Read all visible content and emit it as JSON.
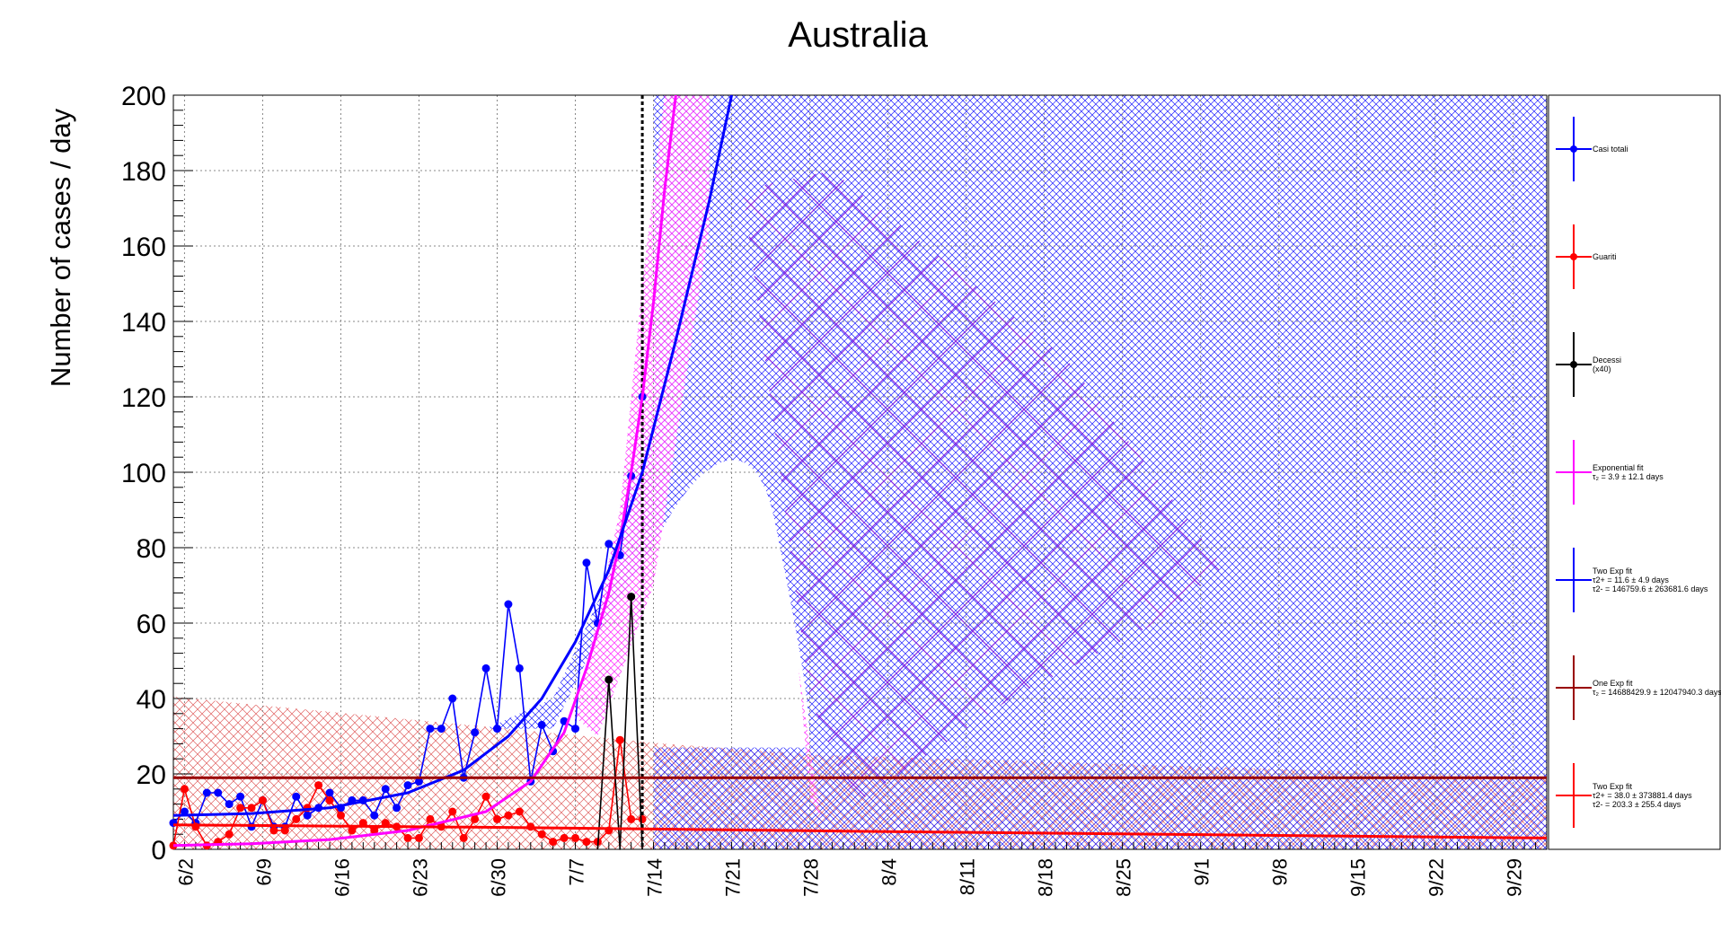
{
  "chart_data": {
    "type": "line",
    "title": "Australia",
    "xlabel": "",
    "ylabel": "Number of cases / day",
    "ylim": [
      0,
      200
    ],
    "yticks": [
      0,
      20,
      40,
      60,
      80,
      100,
      120,
      140,
      160,
      180,
      200
    ],
    "xlim": [
      "2020-06-01",
      "2020-10-02"
    ],
    "grid": true,
    "legend_position": "right",
    "x_tick_labels": [
      {
        "date": "2020-06-02",
        "label": "6/2"
      },
      {
        "date": "2020-06-09",
        "label": "6/9"
      },
      {
        "date": "2020-06-16",
        "label": "6/16"
      },
      {
        "date": "2020-06-23",
        "label": "6/23"
      },
      {
        "date": "2020-06-30",
        "label": "6/30"
      },
      {
        "date": "2020-07-07",
        "label": "7/7"
      },
      {
        "date": "2020-07-14",
        "label": "7/14"
      },
      {
        "date": "2020-07-21",
        "label": "7/21"
      },
      {
        "date": "2020-07-28",
        "label": "7/28"
      },
      {
        "date": "2020-08-04",
        "label": "8/4"
      },
      {
        "date": "2020-08-11",
        "label": "8/11"
      },
      {
        "date": "2020-08-18",
        "label": "8/18"
      },
      {
        "date": "2020-08-25",
        "label": "8/25"
      },
      {
        "date": "2020-09-01",
        "label": "9/1"
      },
      {
        "date": "2020-09-08",
        "label": "9/8"
      },
      {
        "date": "2020-09-15",
        "label": "9/15"
      },
      {
        "date": "2020-09-22",
        "label": "9/22"
      },
      {
        "date": "2020-09-29",
        "label": "9/29"
      }
    ],
    "vertical_line_date": "2020-07-13",
    "series": [
      {
        "name": "Casi totali",
        "color": "#0000ff",
        "points": [
          [
            "2020-06-01",
            7
          ],
          [
            "2020-06-02",
            10
          ],
          [
            "2020-06-03",
            7
          ],
          [
            "2020-06-04",
            15
          ],
          [
            "2020-06-05",
            15
          ],
          [
            "2020-06-06",
            12
          ],
          [
            "2020-06-07",
            14
          ],
          [
            "2020-06-08",
            6
          ],
          [
            "2020-06-09",
            13
          ],
          [
            "2020-06-10",
            6
          ],
          [
            "2020-06-11",
            6
          ],
          [
            "2020-06-12",
            14
          ],
          [
            "2020-06-13",
            9
          ],
          [
            "2020-06-14",
            11
          ],
          [
            "2020-06-15",
            15
          ],
          [
            "2020-06-16",
            11
          ],
          [
            "2020-06-17",
            13
          ],
          [
            "2020-06-18",
            13
          ],
          [
            "2020-06-19",
            9
          ],
          [
            "2020-06-20",
            16
          ],
          [
            "2020-06-21",
            11
          ],
          [
            "2020-06-22",
            17
          ],
          [
            "2020-06-23",
            18
          ],
          [
            "2020-06-24",
            32
          ],
          [
            "2020-06-25",
            32
          ],
          [
            "2020-06-26",
            40
          ],
          [
            "2020-06-27",
            19
          ],
          [
            "2020-06-28",
            31
          ],
          [
            "2020-06-29",
            48
          ],
          [
            "2020-06-30",
            32
          ],
          [
            "2020-07-01",
            65
          ],
          [
            "2020-07-02",
            48
          ],
          [
            "2020-07-03",
            18
          ],
          [
            "2020-07-04",
            33
          ],
          [
            "2020-07-05",
            26
          ],
          [
            "2020-07-06",
            34
          ],
          [
            "2020-07-07",
            32
          ],
          [
            "2020-07-08",
            76
          ],
          [
            "2020-07-09",
            60
          ],
          [
            "2020-07-10",
            81
          ],
          [
            "2020-07-11",
            78
          ],
          [
            "2020-07-12",
            99
          ],
          [
            "2020-07-13",
            120
          ]
        ]
      },
      {
        "name": "Guariti",
        "color": "#ff0000",
        "points": [
          [
            "2020-06-01",
            1
          ],
          [
            "2020-06-02",
            16
          ],
          [
            "2020-06-03",
            6
          ],
          [
            "2020-06-04",
            1
          ],
          [
            "2020-06-05",
            2
          ],
          [
            "2020-06-06",
            4
          ],
          [
            "2020-06-07",
            11
          ],
          [
            "2020-06-08",
            11
          ],
          [
            "2020-06-09",
            13
          ],
          [
            "2020-06-10",
            5
          ],
          [
            "2020-06-11",
            5
          ],
          [
            "2020-06-12",
            8
          ],
          [
            "2020-06-13",
            11
          ],
          [
            "2020-06-14",
            17
          ],
          [
            "2020-06-15",
            13
          ],
          [
            "2020-06-16",
            9
          ],
          [
            "2020-06-17",
            5
          ],
          [
            "2020-06-18",
            7
          ],
          [
            "2020-06-19",
            5
          ],
          [
            "2020-06-20",
            7
          ],
          [
            "2020-06-21",
            6
          ],
          [
            "2020-06-22",
            3
          ],
          [
            "2020-06-23",
            3
          ],
          [
            "2020-06-24",
            8
          ],
          [
            "2020-06-25",
            6
          ],
          [
            "2020-06-26",
            10
          ],
          [
            "2020-06-27",
            3
          ],
          [
            "2020-06-28",
            8
          ],
          [
            "2020-06-29",
            14
          ],
          [
            "2020-06-30",
            8
          ],
          [
            "2020-07-01",
            9
          ],
          [
            "2020-07-02",
            10
          ],
          [
            "2020-07-03",
            6
          ],
          [
            "2020-07-04",
            4
          ],
          [
            "2020-07-05",
            2
          ],
          [
            "2020-07-06",
            3
          ],
          [
            "2020-07-07",
            3
          ],
          [
            "2020-07-08",
            2
          ],
          [
            "2020-07-09",
            2
          ],
          [
            "2020-07-10",
            5
          ],
          [
            "2020-07-11",
            29
          ],
          [
            "2020-07-12",
            8
          ],
          [
            "2020-07-13",
            8
          ]
        ]
      },
      {
        "name": "Decessi",
        "note": "(x40)",
        "color": "#000000",
        "points": [
          [
            "2020-07-09",
            0
          ],
          [
            "2020-07-10",
            45
          ],
          [
            "2020-07-11",
            0
          ],
          [
            "2020-07-12",
            67
          ],
          [
            "2020-07-13",
            0
          ]
        ]
      },
      {
        "name": "Exponential fit",
        "legend_detail": "τ₂ = 3.9  ± 12.1 days",
        "color": "#ff00ff",
        "points": [
          [
            "2020-06-01",
            1
          ],
          [
            "2020-06-08",
            1.5
          ],
          [
            "2020-06-15",
            2.6
          ],
          [
            "2020-06-22",
            5
          ],
          [
            "2020-06-29",
            10
          ],
          [
            "2020-07-03",
            18
          ],
          [
            "2020-07-06",
            31
          ],
          [
            "2020-07-08",
            48
          ],
          [
            "2020-07-10",
            68
          ],
          [
            "2020-07-11",
            82
          ],
          [
            "2020-07-12",
            100
          ],
          [
            "2020-07-13",
            120
          ],
          [
            "2020-07-14",
            145
          ],
          [
            "2020-07-15",
            175
          ],
          [
            "2020-07-16",
            200
          ]
        ]
      },
      {
        "name": "Two Exp fit",
        "legend_detail": [
          "τ2+ = 11.6 ± 4.9 days",
          "τ2- = 146759.6 ± 263681.6 days"
        ],
        "color": "#0000ff",
        "points": [
          [
            "2020-06-01",
            9
          ],
          [
            "2020-06-08",
            9.5
          ],
          [
            "2020-06-15",
            11
          ],
          [
            "2020-06-22",
            15
          ],
          [
            "2020-06-27",
            21
          ],
          [
            "2020-07-01",
            30
          ],
          [
            "2020-07-04",
            40
          ],
          [
            "2020-07-07",
            55
          ],
          [
            "2020-07-10",
            74
          ],
          [
            "2020-07-13",
            100
          ],
          [
            "2020-07-16",
            135
          ],
          [
            "2020-07-19",
            172
          ],
          [
            "2020-07-21",
            200
          ]
        ]
      },
      {
        "name": "One Exp fit",
        "legend_detail": "τ₂ = 14688429.9  ± 12047940.3 days",
        "color": "#990000",
        "points": [
          [
            "2020-06-01",
            19
          ],
          [
            "2020-10-02",
            19
          ]
        ]
      },
      {
        "name": "Two Exp fit",
        "legend_detail": [
          "τ2+ = 38.0 ± 373881.4 days",
          "τ2- = 203.3 ± 255.4 days"
        ],
        "color": "#ff0000",
        "points": [
          [
            "2020-06-01",
            6.5
          ],
          [
            "2020-07-01",
            5.8
          ],
          [
            "2020-08-01",
            4.8
          ],
          [
            "2020-09-01",
            3.9
          ],
          [
            "2020-10-02",
            3
          ]
        ]
      }
    ]
  }
}
